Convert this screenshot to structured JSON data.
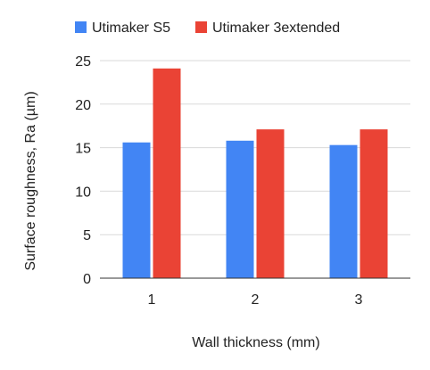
{
  "chart_data": {
    "type": "bar",
    "title": "",
    "xlabel": "Wall thickness (mm)",
    "ylabel": "Surface roughness, Ra (µm)",
    "categories": [
      "1",
      "2",
      "3"
    ],
    "series": [
      {
        "name": "Utimaker S5",
        "values": [
          15.6,
          15.8,
          15.3
        ],
        "color": "#4285f4"
      },
      {
        "name": "Utimaker 3extended",
        "values": [
          24.1,
          17.1,
          17.1
        ],
        "color": "#ea4335"
      }
    ],
    "ylim": [
      0,
      25
    ],
    "yticks": [
      0,
      5,
      10,
      15,
      20,
      25
    ],
    "grid": true,
    "legend_position": "top"
  }
}
